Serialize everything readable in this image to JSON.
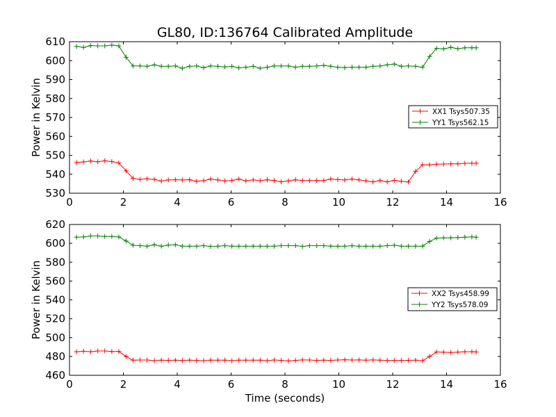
{
  "figure_title": "GL80, ID:136764 Calibrated Amplitude",
  "colors": {
    "xx": "#ff0000",
    "yy": "#008000"
  },
  "chart_data": [
    {
      "type": "line",
      "title": "GL80, ID:136764 Calibrated Amplitude",
      "xlabel": "",
      "ylabel": "Power in Kelvin",
      "xlim": [
        0,
        16
      ],
      "ylim": [
        530,
        610
      ],
      "xticks": [
        0,
        2,
        4,
        6,
        8,
        10,
        12,
        14,
        16
      ],
      "yticks": [
        530,
        540,
        550,
        560,
        570,
        580,
        590,
        600,
        610
      ],
      "grid": false,
      "legend_position": "right",
      "marker": "plus",
      "x": [
        0.26,
        0.52,
        0.79,
        1.05,
        1.31,
        1.57,
        1.83,
        2.1,
        2.36,
        2.62,
        2.88,
        3.15,
        3.41,
        3.67,
        3.93,
        4.19,
        4.46,
        4.72,
        4.98,
        5.24,
        5.51,
        5.77,
        6.03,
        6.29,
        6.55,
        6.82,
        7.08,
        7.34,
        7.6,
        7.86,
        8.13,
        8.39,
        8.65,
        8.91,
        9.18,
        9.44,
        9.7,
        9.96,
        10.22,
        10.49,
        10.75,
        11.01,
        11.27,
        11.53,
        11.8,
        12.06,
        12.32,
        12.58,
        12.85,
        13.11,
        13.37,
        13.63,
        13.89,
        14.16,
        14.42,
        14.68,
        14.94,
        15.1
      ],
      "series": [
        {
          "name": "XX1 Tsys507.35",
          "color": "#ff0000",
          "values": [
            546.2,
            546.5,
            547.0,
            546.6,
            547.1,
            546.7,
            546.0,
            541.8,
            537.8,
            537.3,
            537.6,
            537.3,
            536.4,
            537.0,
            537.1,
            537.0,
            537.1,
            536.3,
            536.6,
            537.5,
            537.0,
            536.5,
            536.7,
            537.5,
            536.5,
            537.0,
            536.6,
            537.1,
            536.7,
            536.0,
            536.5,
            537.1,
            536.7,
            536.7,
            536.7,
            536.7,
            537.5,
            537.2,
            537.0,
            537.5,
            537.0,
            536.5,
            536.0,
            536.7,
            536.0,
            536.8,
            536.3,
            535.9,
            541.5,
            545.0,
            545.0,
            545.3,
            545.4,
            545.5,
            545.5,
            545.8,
            545.8,
            545.8
          ]
        },
        {
          "name": "YY1 Tsys562.15",
          "color": "#008000",
          "values": [
            607.5,
            607.0,
            608.0,
            607.8,
            607.8,
            608.2,
            607.8,
            601.8,
            597.2,
            597.2,
            597.0,
            597.8,
            597.0,
            597.0,
            597.2,
            596.0,
            597.0,
            597.2,
            596.3,
            597.2,
            597.0,
            596.7,
            597.0,
            596.2,
            596.5,
            597.0,
            596.0,
            596.5,
            597.2,
            597.2,
            597.2,
            596.5,
            597.0,
            597.0,
            597.2,
            597.5,
            597.0,
            596.5,
            596.3,
            596.5,
            596.5,
            596.5,
            597.0,
            597.2,
            597.8,
            598.2,
            597.0,
            597.2,
            597.0,
            596.5,
            602.2,
            606.5,
            606.2,
            607.0,
            606.3,
            606.8,
            606.8,
            606.8
          ]
        }
      ]
    },
    {
      "type": "line",
      "title": "",
      "xlabel": "Time (seconds)",
      "ylabel": "Power in Kelvin",
      "xlim": [
        0,
        16
      ],
      "ylim": [
        460,
        620
      ],
      "xticks": [
        0,
        2,
        4,
        6,
        8,
        10,
        12,
        14,
        16
      ],
      "yticks": [
        460,
        480,
        500,
        520,
        540,
        560,
        580,
        600,
        620
      ],
      "grid": false,
      "legend_position": "right",
      "marker": "plus",
      "x": [
        0.26,
        0.52,
        0.79,
        1.05,
        1.31,
        1.57,
        1.83,
        2.1,
        2.36,
        2.62,
        2.88,
        3.15,
        3.41,
        3.67,
        3.93,
        4.19,
        4.46,
        4.72,
        4.98,
        5.24,
        5.51,
        5.77,
        6.03,
        6.29,
        6.55,
        6.82,
        7.08,
        7.34,
        7.6,
        7.86,
        8.13,
        8.39,
        8.65,
        8.91,
        9.18,
        9.44,
        9.7,
        9.96,
        10.22,
        10.49,
        10.75,
        11.01,
        11.27,
        11.53,
        11.8,
        12.06,
        12.32,
        12.58,
        12.85,
        13.11,
        13.37,
        13.63,
        13.89,
        14.16,
        14.42,
        14.68,
        14.94,
        15.1
      ],
      "series": [
        {
          "name": "XX2 Tsys458.99",
          "color": "#ff0000",
          "values": [
            485.0,
            485.5,
            485.0,
            485.8,
            485.8,
            485.2,
            485.3,
            480.0,
            476.0,
            476.2,
            476.2,
            475.5,
            476.0,
            475.8,
            476.0,
            475.8,
            476.0,
            475.8,
            475.5,
            476.0,
            476.0,
            476.0,
            475.5,
            476.0,
            476.0,
            476.0,
            476.0,
            475.5,
            476.2,
            475.8,
            475.2,
            475.8,
            476.3,
            476.2,
            475.8,
            476.0,
            475.8,
            476.2,
            476.5,
            476.2,
            476.3,
            476.0,
            476.3,
            476.0,
            475.8,
            475.8,
            475.8,
            475.8,
            476.0,
            475.5,
            480.0,
            484.8,
            484.5,
            484.2,
            484.6,
            485.0,
            485.0,
            484.8
          ]
        },
        {
          "name": "YY2 Tsys578.09",
          "color": "#008000",
          "values": [
            606.5,
            606.8,
            607.8,
            607.8,
            607.3,
            607.3,
            606.8,
            602.5,
            598.0,
            597.5,
            597.0,
            598.5,
            597.0,
            598.2,
            598.5,
            597.0,
            597.0,
            597.0,
            597.5,
            596.8,
            597.0,
            597.5,
            597.0,
            597.0,
            597.0,
            597.0,
            597.0,
            597.0,
            597.0,
            597.5,
            597.5,
            597.5,
            596.8,
            597.5,
            597.5,
            597.5,
            597.0,
            597.0,
            597.0,
            597.5,
            597.0,
            597.0,
            597.0,
            597.0,
            597.5,
            598.0,
            597.0,
            597.0,
            597.0,
            597.0,
            602.0,
            605.5,
            605.8,
            605.8,
            606.2,
            606.5,
            606.8,
            606.5
          ]
        }
      ]
    }
  ]
}
